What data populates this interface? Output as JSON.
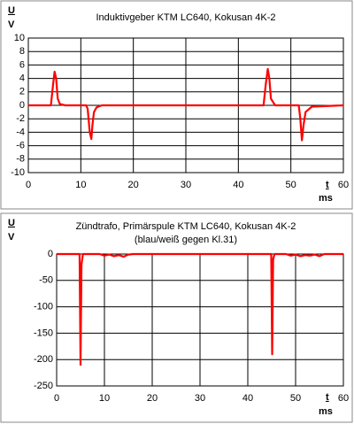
{
  "chart_data": [
    {
      "type": "line",
      "title": "Induktivgeber KTM LC640, Kokusan 4K-2",
      "y_label": "U",
      "y_unit": "V",
      "x_label": "t",
      "x_unit": "ms",
      "x": [
        0,
        4.3,
        4.7,
        5,
        5.3,
        5.6,
        6,
        7,
        11,
        11.3,
        11.7,
        12,
        12.2,
        12.5,
        13,
        14,
        44.8,
        45.2,
        45.6,
        45.9,
        46.2,
        47,
        51.5,
        51.8,
        52.1,
        52.4,
        52.8,
        54,
        60
      ],
      "values": [
        0,
        0,
        3,
        5,
        4,
        1,
        0.2,
        0,
        0,
        -0.5,
        -4,
        -5,
        -3,
        -1,
        -0.3,
        0,
        0,
        3,
        5.4,
        4,
        1,
        0,
        0,
        -2,
        -5.2,
        -3,
        -1,
        -0.2,
        0
      ],
      "color": "#ff0000",
      "xlim": [
        0,
        60
      ],
      "xticks": [
        0,
        10,
        20,
        30,
        40,
        50,
        60
      ],
      "ylim": [
        -10,
        10
      ],
      "yticks": [
        -10,
        -8,
        -6,
        -4,
        -2,
        0,
        2,
        4,
        6,
        8,
        10
      ],
      "grid": true
    },
    {
      "type": "line",
      "title": "Zündtrafo, Primärspule KTM LC640, Kokusan 4K-2",
      "subtitle": "(blau/weiß gegen Kl.31)",
      "y_label": "U",
      "y_unit": "V",
      "x_label": "t",
      "x_unit": "ms",
      "x": [
        0,
        4.8,
        5,
        5.2,
        5.5,
        9,
        10,
        11,
        12,
        13,
        14,
        15,
        16,
        20,
        44.9,
        45.1,
        45.3,
        45.6,
        48,
        49,
        50,
        51,
        52,
        53,
        54,
        55,
        56,
        60
      ],
      "values": [
        0,
        0,
        -210,
        -20,
        0,
        0,
        -3,
        -1,
        -4,
        -2,
        -5,
        -1,
        0,
        0,
        0,
        -190,
        -10,
        0,
        0,
        -3,
        -1,
        -4,
        -2,
        -3,
        -1,
        -4,
        0,
        0
      ],
      "color": "#ff0000",
      "xlim": [
        0,
        60
      ],
      "xticks": [
        0,
        10,
        20,
        30,
        40,
        50,
        60
      ],
      "ylim": [
        -250,
        0
      ],
      "yticks": [
        -250,
        -200,
        -150,
        -100,
        -50,
        0
      ],
      "grid": true
    }
  ]
}
